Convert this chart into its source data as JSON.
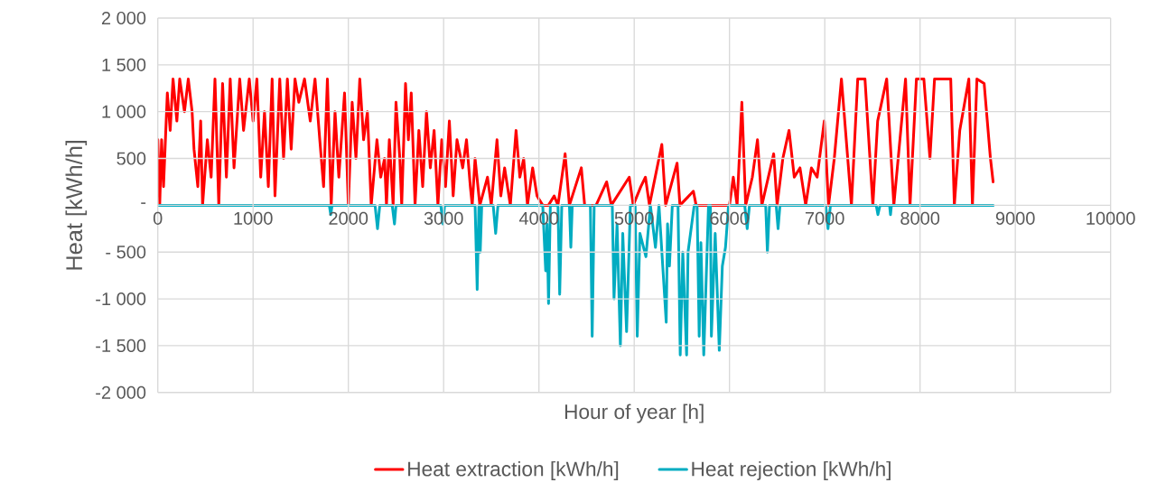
{
  "chart_data": {
    "type": "line",
    "xlabel": "Hour of year [h]",
    "ylabel": "Heat [kWh/h]",
    "xlim": [
      0,
      10000
    ],
    "ylim": [
      -2000,
      2000
    ],
    "xticks": [
      0,
      1000,
      2000,
      3000,
      4000,
      5000,
      6000,
      7000,
      8000,
      9000,
      10000
    ],
    "yticks": [
      {
        "value": 2000,
        "label": "2 000"
      },
      {
        "value": 1500,
        "label": "1 500"
      },
      {
        "value": 1000,
        "label": "1 000"
      },
      500,
      {
        "value": 0,
        "label": "-"
      },
      {
        "value": -500,
        "label": "- 500"
      },
      {
        "value": -1000,
        "label": "-1 000"
      },
      {
        "value": -1500,
        "label": "-1 500"
      },
      {
        "value": -2000,
        "label": "-2 000"
      }
    ],
    "grid": true,
    "legend": "bottom",
    "series": [
      {
        "name": "Heat extraction [kWh/h]",
        "color": "#ff0000",
        "x": [
          0,
          20,
          40,
          60,
          100,
          130,
          160,
          200,
          230,
          280,
          320,
          360,
          380,
          420,
          450,
          470,
          520,
          560,
          600,
          640,
          680,
          720,
          760,
          800,
          860,
          900,
          960,
          1000,
          1040,
          1080,
          1120,
          1160,
          1200,
          1230,
          1280,
          1320,
          1360,
          1400,
          1440,
          1480,
          1540,
          1600,
          1650,
          1700,
          1740,
          1780,
          1820,
          1860,
          1900,
          1960,
          2000,
          2040,
          2080,
          2120,
          2160,
          2200,
          2240,
          2300,
          2340,
          2380,
          2400,
          2430,
          2470,
          2500,
          2540,
          2560,
          2600,
          2630,
          2660,
          2700,
          2740,
          2780,
          2820,
          2860,
          2900,
          2940,
          2980,
          3020,
          3060,
          3100,
          3140,
          3200,
          3240,
          3280,
          3300,
          3330,
          3380,
          3460,
          3500,
          3560,
          3600,
          3640,
          3700,
          3760,
          3800,
          3840,
          3880,
          3934,
          3980,
          4040,
          4100,
          4160,
          4200,
          4275,
          4320,
          4445,
          4480,
          4600,
          4711,
          4760,
          4948,
          4990,
          5070,
          5118,
          5160,
          5290,
          5330,
          5450,
          5480,
          5621,
          5650,
          6000,
          6040,
          6080,
          6130,
          6170,
          6240,
          6294,
          6340,
          6464,
          6500,
          6560,
          6625,
          6680,
          6740,
          6800,
          6860,
          6920,
          6995,
          7040,
          7100,
          7175,
          7280,
          7346,
          7422,
          7505,
          7555,
          7650,
          7725,
          7848,
          7895,
          7962,
          8040,
          8104,
          8152,
          8322,
          8360,
          8417,
          8512,
          8550,
          8597,
          8673,
          8739,
          8767
        ],
        "values": [
          700,
          0,
          700,
          200,
          1200,
          800,
          1350,
          900,
          1350,
          1000,
          1350,
          1000,
          600,
          200,
          900,
          0,
          700,
          300,
          1350,
          0,
          1300,
          300,
          1350,
          400,
          1350,
          800,
          1350,
          900,
          1350,
          300,
          1000,
          200,
          1350,
          100,
          1350,
          500,
          1350,
          600,
          1350,
          1100,
          1350,
          900,
          1350,
          700,
          200,
          1350,
          0,
          1000,
          300,
          1200,
          0,
          1100,
          500,
          1350,
          700,
          1000,
          0,
          700,
          300,
          500,
          0,
          700,
          0,
          1100,
          500,
          0,
          1300,
          700,
          1200,
          0,
          800,
          200,
          1000,
          400,
          800,
          0,
          700,
          200,
          900,
          100,
          700,
          400,
          700,
          200,
          0,
          500,
          0,
          300,
          0,
          700,
          100,
          400,
          0,
          800,
          300,
          500,
          0,
          400,
          100,
          0,
          0,
          100,
          0,
          550,
          0,
          400,
          0,
          0,
          250,
          0,
          300,
          0,
          200,
          300,
          0,
          650,
          0,
          450,
          0,
          150,
          0,
          0,
          300,
          0,
          1100,
          0,
          300,
          700,
          0,
          550,
          0,
          500,
          800,
          300,
          400,
          0,
          400,
          300,
          900,
          0,
          500,
          1350,
          0,
          1350,
          1350,
          0,
          900,
          1350,
          0,
          1350,
          0,
          1350,
          1350,
          500,
          1350,
          1350,
          0,
          800,
          1350,
          0,
          1350,
          1300,
          500,
          250
        ]
      },
      {
        "name": "Heat rejection [kWh/h]",
        "color": "#00acc1",
        "x": [
          0,
          1800,
          1815,
          1830,
          2280,
          2306,
          2330,
          2460,
          2484,
          2500,
          2970,
          2993,
          3010,
          3330,
          3352,
          3370,
          3384,
          3400,
          3520,
          3546,
          3570,
          4040,
          4071,
          4085,
          4101,
          4120,
          4200,
          4218,
          4240,
          4320,
          4335,
          4350,
          4540,
          4559,
          4580,
          4770,
          4788,
          4820,
          4855,
          4880,
          4920,
          4960,
          5010,
          5032,
          5060,
          5123,
          5170,
          5223,
          5260,
          5336,
          5350,
          5370,
          5400,
          5460,
          5483,
          5510,
          5550,
          5565,
          5630,
          5660,
          5682,
          5700,
          5730,
          5780,
          5800,
          5810,
          5850,
          5893,
          5925,
          5958,
          5990,
          6160,
          6186,
          6210,
          6380,
          6398,
          6420,
          6490,
          6510,
          6530,
          7010,
          7034,
          7060,
          7540,
          7558,
          7580,
          7680,
          7690,
          7700,
          8768
        ],
        "values": [
          0,
          0,
          -100,
          0,
          0,
          -250,
          0,
          0,
          -200,
          0,
          0,
          -200,
          0,
          0,
          -900,
          0,
          -500,
          0,
          0,
          -300,
          0,
          0,
          -700,
          -200,
          -1050,
          0,
          0,
          -950,
          0,
          0,
          -450,
          0,
          0,
          -1400,
          0,
          0,
          -1000,
          -200,
          -1500,
          -300,
          -1350,
          0,
          0,
          -1400,
          -300,
          -550,
          0,
          -450,
          0,
          -1250,
          -200,
          -650,
          0,
          0,
          -1600,
          -500,
          -1600,
          -500,
          0,
          0,
          -1400,
          -400,
          -1600,
          0,
          0,
          -1400,
          -300,
          -1550,
          -650,
          -450,
          0,
          0,
          -250,
          0,
          0,
          -500,
          0,
          0,
          -250,
          0,
          0,
          -250,
          0,
          0,
          -100,
          0,
          0,
          -100,
          0,
          0
        ]
      }
    ]
  }
}
